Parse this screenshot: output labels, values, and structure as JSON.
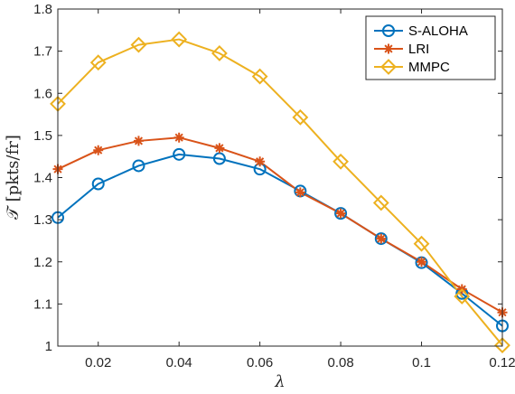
{
  "chart_data": {
    "type": "line",
    "x": [
      0.01,
      0.02,
      0.03,
      0.04,
      0.05,
      0.06,
      0.07,
      0.08,
      0.09,
      0.1,
      0.11,
      0.12
    ],
    "series": [
      {
        "name": "S-ALOHA",
        "color": "#0072BD",
        "marker": "circle",
        "values": [
          1.305,
          1.385,
          1.428,
          1.455,
          1.445,
          1.42,
          1.368,
          1.315,
          1.255,
          1.198,
          1.125,
          1.048
        ]
      },
      {
        "name": "LRI",
        "color": "#D95319",
        "marker": "asterisk",
        "values": [
          1.42,
          1.465,
          1.487,
          1.495,
          1.47,
          1.438,
          1.365,
          1.315,
          1.255,
          1.2,
          1.135,
          1.08
        ]
      },
      {
        "name": "MMPC",
        "color": "#EDB120",
        "marker": "diamond",
        "values": [
          1.575,
          1.673,
          1.715,
          1.728,
          1.695,
          1.64,
          1.543,
          1.438,
          1.34,
          1.243,
          1.118,
          1.002
        ]
      }
    ],
    "xlim": [
      0.01,
      0.12
    ],
    "ylim": [
      1.0,
      1.8
    ],
    "x_ticks": [
      0.02,
      0.04,
      0.06,
      0.08,
      0.1,
      0.12
    ],
    "x_tick_labels": [
      "0.02",
      "0.04",
      "0.06",
      "0.08",
      "0.1",
      "0.12"
    ],
    "y_ticks": [
      1.0,
      1.1,
      1.2,
      1.3,
      1.4,
      1.5,
      1.6,
      1.7,
      1.8
    ],
    "y_tick_labels": [
      "1",
      "1.1",
      "1.2",
      "1.3",
      "1.4",
      "1.5",
      "1.6",
      "1.7",
      "1.8"
    ],
    "xlabel": "λ",
    "ylabel": "𝒯 [pkts/fr]",
    "grid": false,
    "legend_position": "top-right"
  }
}
